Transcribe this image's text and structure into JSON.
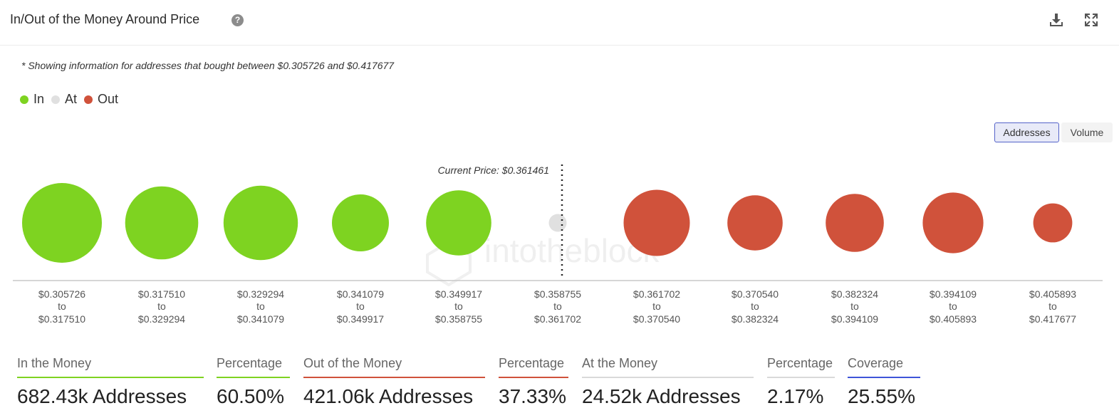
{
  "header": {
    "title": "In/Out of the Money Around Price",
    "help_glyph": "?"
  },
  "note": "* Showing information for addresses that bought between $0.305726 and $0.417677",
  "legend": [
    {
      "label": "In",
      "color": "#7ed321"
    },
    {
      "label": "At",
      "color": "#e0e0e0"
    },
    {
      "label": "Out",
      "color": "#d0523b"
    }
  ],
  "toggle": {
    "addresses_label": "Addresses",
    "volume_label": "Volume",
    "selected": "Addresses"
  },
  "watermark": "intotheblock",
  "chart_data": {
    "type": "bubble",
    "current_price_label": "Current Price: $0.361461",
    "current_price": 0.361461,
    "value_basis": "relative bubble area (estimated from bubble size, 0-1)",
    "buckets": [
      {
        "from": "$0.305726",
        "to": "$0.317510",
        "status": "In",
        "value": 1.0
      },
      {
        "from": "$0.317510",
        "to": "$0.329294",
        "status": "In",
        "value": 0.84
      },
      {
        "from": "$0.329294",
        "to": "$0.341079",
        "status": "In",
        "value": 0.87
      },
      {
        "from": "$0.341079",
        "to": "$0.349917",
        "status": "In",
        "value": 0.51
      },
      {
        "from": "$0.349917",
        "to": "$0.358755",
        "status": "In",
        "value": 0.67
      },
      {
        "from": "$0.358755",
        "to": "$0.361702",
        "status": "At",
        "value": 0.05
      },
      {
        "from": "$0.361702",
        "to": "$0.370540",
        "status": "Out",
        "value": 0.69
      },
      {
        "from": "$0.370540",
        "to": "$0.382324",
        "status": "Out",
        "value": 0.48
      },
      {
        "from": "$0.382324",
        "to": "$0.394109",
        "status": "Out",
        "value": 0.53
      },
      {
        "from": "$0.394109",
        "to": "$0.405893",
        "status": "Out",
        "value": 0.58
      },
      {
        "from": "$0.405893",
        "to": "$0.417677",
        "status": "Out",
        "value": 0.24
      }
    ],
    "range_separator": "to"
  },
  "stats": [
    {
      "label": "In the Money",
      "value": "682.43k Addresses",
      "color": "#7ed321"
    },
    {
      "label": "Percentage",
      "value": "60.50%",
      "color": "#7ed321"
    },
    {
      "label": "Out of the Money",
      "value": "421.06k Addresses",
      "color": "#d0523b"
    },
    {
      "label": "Percentage",
      "value": "37.33%",
      "color": "#d0523b"
    },
    {
      "label": "At the Money",
      "value": "24.52k Addresses",
      "color": "#d9d9d9"
    },
    {
      "label": "Percentage",
      "value": "2.17%",
      "color": "#d9d9d9"
    },
    {
      "label": "Coverage",
      "value": "25.55%",
      "color": "#3e55d8"
    }
  ]
}
